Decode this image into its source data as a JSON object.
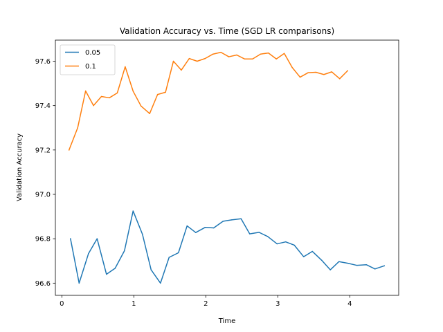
{
  "chart_data": {
    "type": "line",
    "title": "Validation Accuracy vs. Time (SGD LR comparisons)",
    "xlabel": "Time",
    "ylabel": "Validation Accuracy",
    "xlim": [
      -0.09,
      4.68
    ],
    "ylim": [
      96.545,
      97.695
    ],
    "xticks": [
      0,
      1,
      2,
      3,
      4
    ],
    "yticks": [
      96.6,
      96.8,
      97.0,
      97.2,
      97.4,
      97.6
    ],
    "ytick_labels": [
      "96.6",
      "96.8",
      "97.0",
      "97.2",
      "97.4",
      "97.6"
    ],
    "grid": false,
    "legend_position": "top-left",
    "series": [
      {
        "name": "0.05",
        "color": "#1f77b4",
        "x": [
          0.12,
          0.24,
          0.37,
          0.49,
          0.62,
          0.74,
          0.87,
          0.99,
          1.12,
          1.24,
          1.37,
          1.49,
          1.62,
          1.74,
          1.86,
          1.99,
          2.11,
          2.24,
          2.36,
          2.49,
          2.61,
          2.74,
          2.86,
          2.99,
          3.11,
          3.23,
          3.36,
          3.48,
          3.61,
          3.73,
          3.85,
          3.98,
          4.1,
          4.23,
          4.35,
          4.48
        ],
        "y": [
          96.8,
          96.6,
          96.733,
          96.8,
          96.64,
          96.667,
          96.746,
          96.925,
          96.82,
          96.66,
          96.6,
          96.716,
          96.737,
          96.858,
          96.828,
          96.851,
          96.849,
          96.879,
          96.885,
          96.89,
          96.822,
          96.829,
          96.81,
          96.777,
          96.786,
          96.771,
          96.719,
          96.743,
          96.703,
          96.66,
          96.697,
          96.689,
          96.68,
          96.683,
          96.664,
          96.678
        ]
      },
      {
        "name": "0.1",
        "color": "#ff7f0e",
        "x": [
          0.1,
          0.22,
          0.33,
          0.44,
          0.55,
          0.66,
          0.77,
          0.88,
          0.99,
          1.1,
          1.22,
          1.33,
          1.44,
          1.55,
          1.66,
          1.77,
          1.88,
          1.99,
          2.1,
          2.21,
          2.32,
          2.43,
          2.54,
          2.65,
          2.76,
          2.87,
          2.98,
          3.09,
          3.2,
          3.31,
          3.42,
          3.53,
          3.64,
          3.75,
          3.86,
          3.97
        ],
        "y": [
          97.2,
          97.3,
          97.466,
          97.4,
          97.441,
          97.435,
          97.457,
          97.575,
          97.465,
          97.398,
          97.364,
          97.45,
          97.46,
          97.6,
          97.56,
          97.612,
          97.6,
          97.612,
          97.632,
          97.64,
          97.62,
          97.628,
          97.61,
          97.61,
          97.632,
          97.637,
          97.61,
          97.635,
          97.572,
          97.528,
          97.548,
          97.55,
          97.54,
          97.552,
          97.521,
          97.557
        ]
      }
    ]
  }
}
